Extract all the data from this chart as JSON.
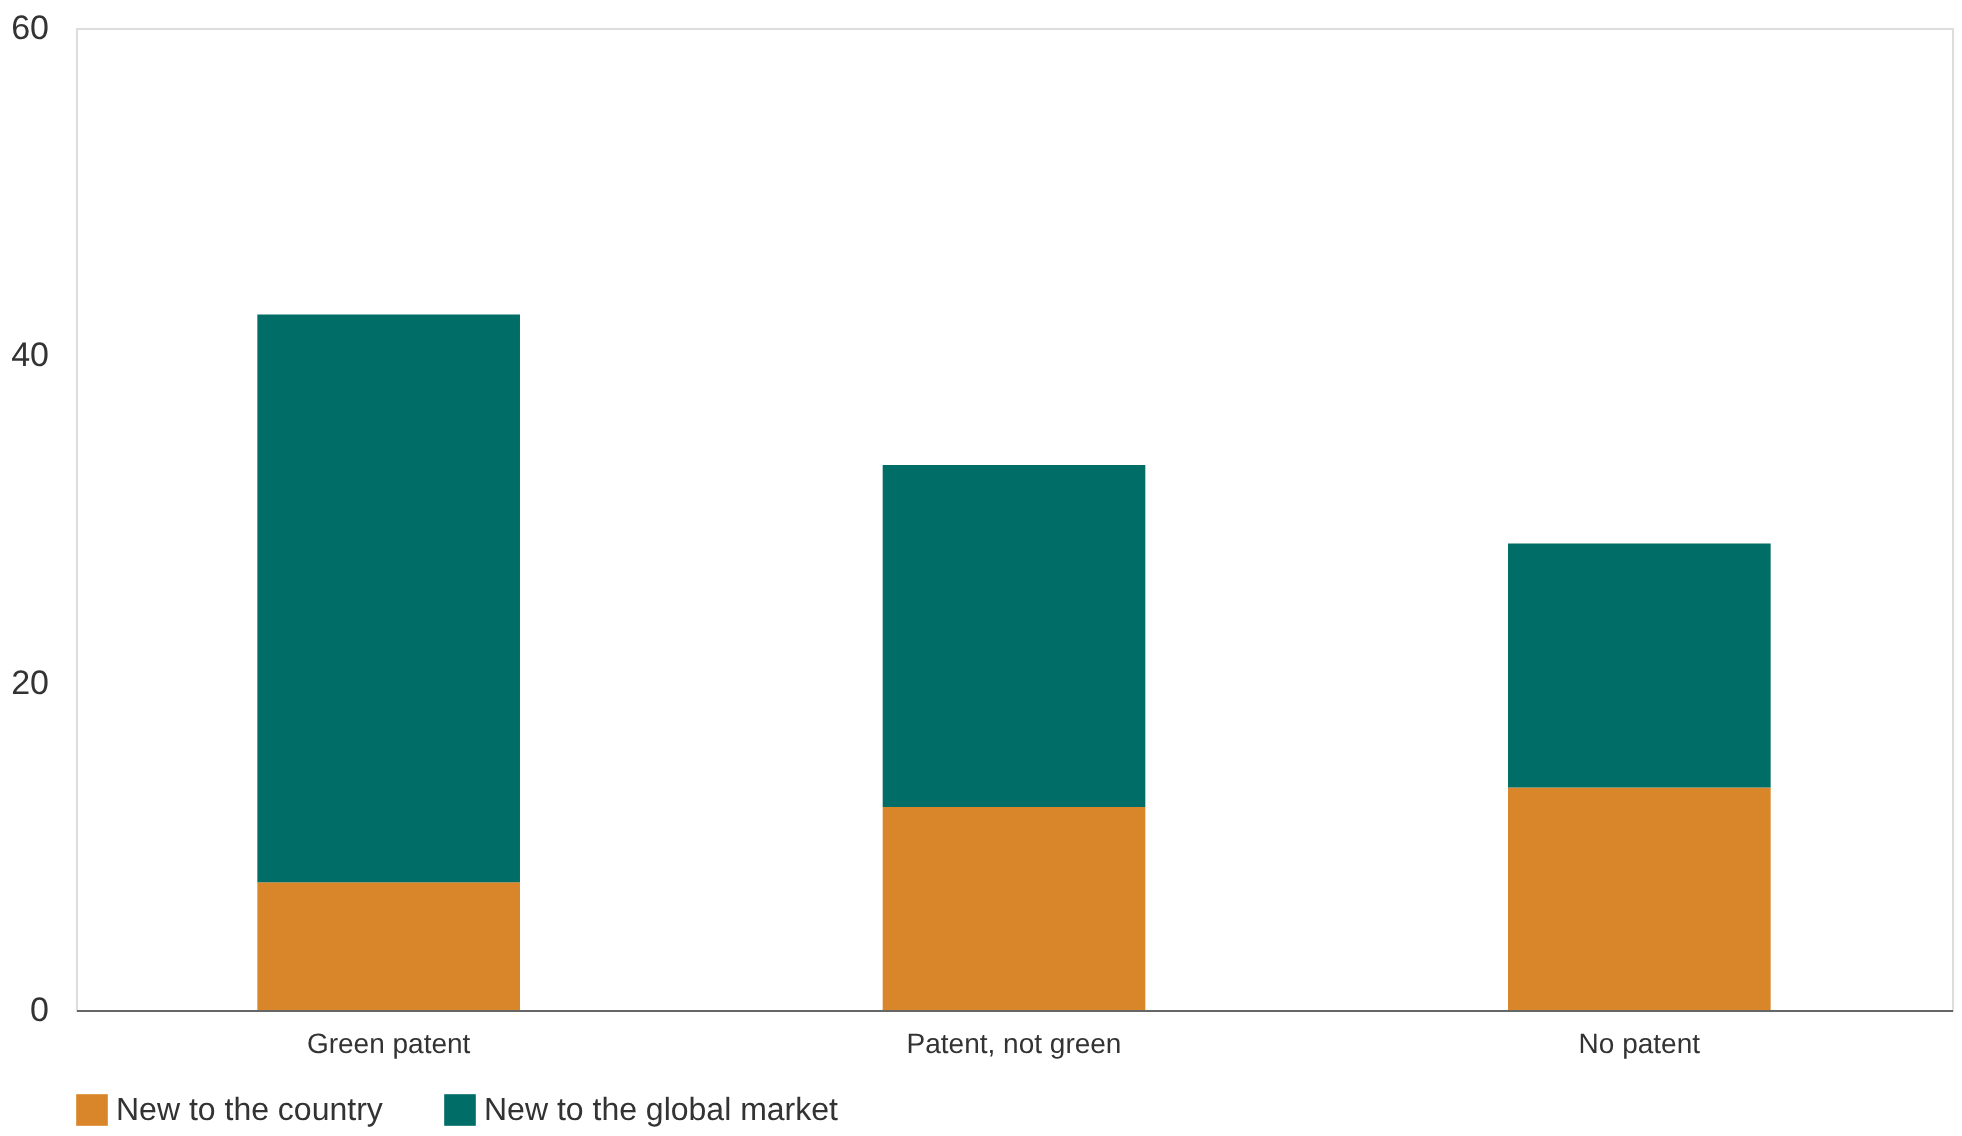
{
  "chart_data": {
    "type": "bar",
    "stacked": true,
    "categories": [
      "Green patent",
      "Patent, not green",
      "No patent"
    ],
    "series": [
      {
        "name": "New to the country",
        "color": "#d9852a",
        "values": [
          7.8,
          12.4,
          13.6
        ]
      },
      {
        "name": "New to the global market",
        "color": "#006e66",
        "values": [
          34.7,
          20.9,
          14.9
        ]
      }
    ],
    "ylim": [
      0,
      60
    ],
    "yticks": [
      0,
      20,
      40,
      60
    ],
    "grid": false,
    "legend": "bottom"
  }
}
